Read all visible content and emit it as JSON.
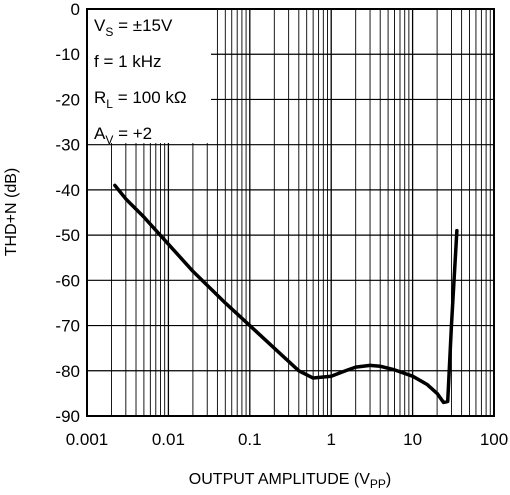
{
  "chart_data": {
    "type": "line",
    "title": "",
    "xlabel": "OUTPUT AMPLITUDE (V",
    "xlabel_sub": "PP",
    "xlabel_close": ")",
    "ylabel": "THD+N (dB)",
    "xscale": "log",
    "xlim": [
      0.001,
      100
    ],
    "ylim": [
      -90,
      0
    ],
    "grid": true,
    "x_ticks": [
      0.001,
      0.01,
      0.1,
      1,
      10,
      100
    ],
    "x_tick_labels": [
      "0.001",
      "0.01",
      "0.1",
      "1",
      "10",
      "100"
    ],
    "y_ticks": [
      0,
      -10,
      -20,
      -30,
      -40,
      -50,
      -60,
      -70,
      -80,
      -90
    ],
    "y_tick_labels": [
      "0",
      "-10",
      "-20",
      "-30",
      "-40",
      "-50",
      "-60",
      "-70",
      "-80",
      "-90"
    ],
    "annotations": [
      {
        "main": "V",
        "sub": "S",
        "rest": " = ±15V"
      },
      {
        "main": "f = 1 kHz",
        "sub": "",
        "rest": ""
      },
      {
        "main": "R",
        "sub": "L",
        "rest": " = 100 kΩ"
      },
      {
        "main": "A",
        "sub": "V",
        "rest": " = +2"
      }
    ],
    "series": [
      {
        "x": [
          0.0022,
          0.003,
          0.005,
          0.01,
          0.02,
          0.05,
          0.1,
          0.2,
          0.4,
          0.6,
          1.0,
          1.5,
          2.0,
          3.0,
          4.0,
          6.0,
          10.0,
          15.0,
          20.0,
          24.0,
          27.0,
          30.0,
          33.0,
          35.0
        ],
        "y": [
          -39,
          -42,
          -46,
          -52,
          -58,
          -65,
          -70,
          -75,
          -80,
          -81.6,
          -81.2,
          -80,
          -79.2,
          -78.8,
          -79,
          -79.8,
          -81.2,
          -83,
          -85,
          -87,
          -86.8,
          -70,
          -57,
          -49
        ]
      }
    ]
  }
}
